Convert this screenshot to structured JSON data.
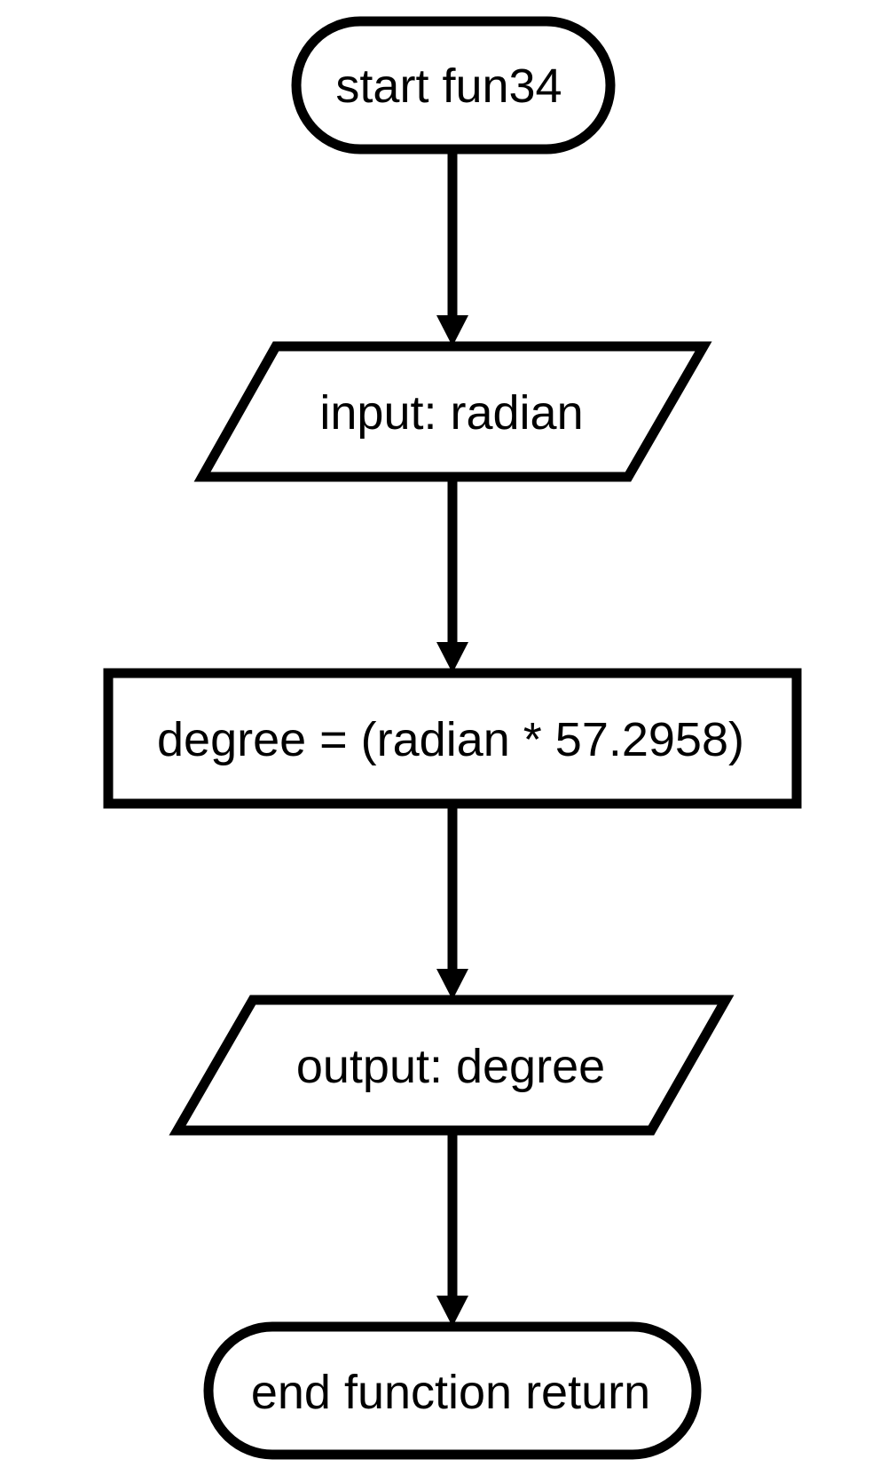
{
  "diagram": {
    "type": "flowchart",
    "nodes": {
      "start": {
        "shape": "terminator",
        "label": "start fun34"
      },
      "input": {
        "shape": "parallelogram",
        "label": "input: radian"
      },
      "process": {
        "shape": "rectangle",
        "label": "degree = (radian * 57.2958)"
      },
      "output": {
        "shape": "parallelogram",
        "label": "output: degree"
      },
      "end": {
        "shape": "terminator",
        "label": "end function return"
      }
    },
    "edges": [
      {
        "from": "start",
        "to": "input"
      },
      {
        "from": "input",
        "to": "process"
      },
      {
        "from": "process",
        "to": "output"
      },
      {
        "from": "output",
        "to": "end"
      }
    ]
  },
  "colors": {
    "stroke": "#000000",
    "fill": "#ffffff",
    "background": "#ffffff"
  }
}
